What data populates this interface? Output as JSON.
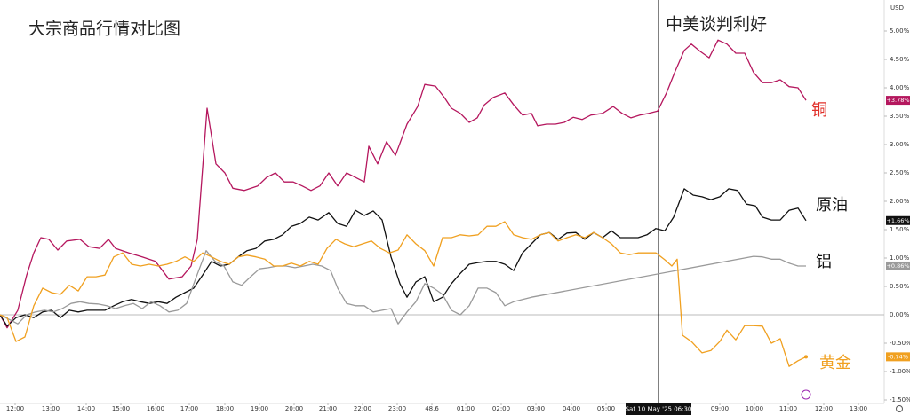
{
  "chart_data": {
    "type": "line",
    "title": "大宗商品行情对比图",
    "annotation": "中美谈判利好",
    "currency": "USD",
    "crosshair": {
      "x": 74.1,
      "label": "Sat 10 May '25   06:30"
    },
    "xlim": [
      0,
      99.5
    ],
    "ylim": [
      -1.5625,
      5.546875
    ],
    "xticks": [
      {
        "value": 1.7,
        "label": "12:00"
      },
      {
        "value": 5.7,
        "label": "13:00"
      },
      {
        "value": 9.7,
        "label": "14:00"
      },
      {
        "value": 13.6,
        "label": "15:00"
      },
      {
        "value": 17.5,
        "label": "16:00"
      },
      {
        "value": 21.3,
        "label": "17:00"
      },
      {
        "value": 25.3,
        "label": "18:00"
      },
      {
        "value": 29.2,
        "label": "19:00"
      },
      {
        "value": 33.1,
        "label": "20:00"
      },
      {
        "value": 36.9,
        "label": "21:00"
      },
      {
        "value": 40.8,
        "label": "22:00"
      },
      {
        "value": 44.7,
        "label": "23:00"
      },
      48.6,
      {
        "value": 52.4,
        "label": "01:00"
      },
      {
        "value": 56.4,
        "label": "02:00"
      },
      {
        "value": 60.3,
        "label": "03:00"
      },
      {
        "value": 64.3,
        "label": "04:00"
      },
      {
        "value": 68.2,
        "label": "05:00"
      },
      {
        "value": 81,
        "label": "09:00"
      },
      {
        "value": 84.9,
        "label": "10:00"
      },
      {
        "value": 88.7,
        "label": "11:00"
      },
      {
        "value": 92.7,
        "label": "12:00"
      },
      {
        "value": 96.6,
        "label": "13:00"
      }
    ],
    "yticks": [
      {
        "value": 5,
        "label": "5.00%"
      },
      {
        "value": 4.5,
        "label": "4.50%"
      },
      {
        "value": 4,
        "label": "4.00%"
      },
      {
        "value": 3.5,
        "label": "3.50%"
      },
      {
        "value": 3,
        "label": "3.00%"
      },
      {
        "value": 2.5,
        "label": "2.50%"
      },
      {
        "value": 2,
        "label": "2.00%"
      },
      {
        "value": 1.5,
        "label": "1.50%"
      },
      {
        "value": 1,
        "label": "1.00%"
      },
      {
        "value": 0.5,
        "label": "0.50%"
      },
      {
        "value": 0,
        "label": "0.00%"
      },
      {
        "value": -0.5,
        "label": "-0.50%"
      },
      {
        "value": -1,
        "label": "-1.00%"
      },
      {
        "value": -1.5,
        "label": "-1.50%"
      }
    ],
    "series": [
      {
        "name": "铜",
        "color": "#b5175e",
        "label_color": "#e0302a",
        "x": [
          0,
          0.8,
          2,
          3,
          3.8,
          4.6,
          5.5,
          6.5,
          7.5,
          9,
          10,
          11.2,
          12.2,
          13,
          14.5,
          16,
          17.5,
          19,
          20.5,
          21.5,
          22.2,
          23.3,
          24.3,
          25.3,
          26.2,
          27.5,
          29,
          30,
          31,
          32,
          33,
          34,
          35,
          36,
          37,
          38,
          39,
          40,
          41,
          41.5,
          42.5,
          43.5,
          44.5,
          45.8,
          47,
          47.8,
          49,
          50,
          50.8,
          51.8,
          52.8,
          53.7,
          54.5,
          55.5,
          56.8,
          57.8,
          58.8,
          59.8,
          60.5,
          61.5,
          62.5,
          63.5,
          64.5,
          65.5,
          66.5,
          67.8,
          69,
          70,
          71,
          72,
          73,
          74,
          75,
          76,
          77,
          77.8,
          78.8,
          79.8,
          80.8,
          81.8,
          82.8,
          83.8,
          84.8,
          85.8,
          86.8,
          87.8,
          88.8,
          89.8,
          90.7
        ],
        "values": [
          0,
          -0.23,
          0.08,
          0.7,
          1.09,
          1.36,
          1.33,
          1.14,
          1.3,
          1.33,
          1.2,
          1.17,
          1.33,
          1.17,
          1.09,
          1.02,
          0.94,
          0.63,
          0.67,
          0.86,
          1.33,
          3.64,
          2.66,
          2.5,
          2.23,
          2.19,
          2.27,
          2.42,
          2.5,
          2.34,
          2.34,
          2.27,
          2.19,
          2.27,
          2.5,
          2.27,
          2.5,
          2.42,
          2.34,
          2.97,
          2.66,
          3.05,
          2.81,
          3.36,
          3.67,
          4.06,
          4.03,
          3.83,
          3.64,
          3.55,
          3.39,
          3.47,
          3.7,
          3.83,
          3.91,
          3.7,
          3.52,
          3.55,
          3.33,
          3.36,
          3.36,
          3.39,
          3.48,
          3.44,
          3.52,
          3.55,
          3.67,
          3.55,
          3.47,
          3.52,
          3.55,
          3.59,
          3.91,
          4.3,
          4.66,
          4.77,
          4.64,
          4.53,
          4.84,
          4.77,
          4.61,
          4.61,
          4.27,
          4.09,
          4.09,
          4.14,
          4.02,
          4,
          3.78
        ],
        "value_labels": [
          null,
          null,
          null,
          null,
          null,
          null,
          null,
          null,
          null,
          null,
          null,
          null,
          null,
          null,
          null,
          null,
          null,
          null,
          null,
          null,
          null,
          null,
          null,
          null,
          null,
          null,
          null,
          null,
          null,
          null,
          null,
          null,
          null,
          null,
          null,
          null,
          null,
          null,
          null,
          null,
          null,
          null,
          null,
          null,
          null,
          null,
          null,
          null,
          null,
          null,
          null,
          null,
          null,
          null,
          null,
          null,
          null,
          null,
          null,
          null,
          null,
          null,
          null,
          null,
          null,
          null,
          null,
          null,
          null,
          null,
          null,
          null,
          null,
          null,
          null,
          null,
          null,
          null,
          null,
          null,
          null,
          null,
          null,
          null,
          null,
          null,
          null,
          null,
          "+3.78%"
        ]
      },
      {
        "name": "原油",
        "color": "#111111",
        "label_color": "#111111",
        "x": [
          0,
          0.8,
          1.8,
          2.8,
          3.8,
          4.8,
          5.8,
          6.8,
          7.8,
          8.8,
          9.8,
          10.8,
          11.8,
          12.8,
          13.8,
          14.8,
          15.8,
          16.8,
          17.8,
          18.8,
          19.8,
          20.8,
          21.8,
          22.8,
          23.8,
          24.8,
          25.8,
          26.8,
          27.8,
          28.8,
          29.8,
          30.8,
          31.8,
          32.8,
          33.8,
          34.8,
          35.8,
          37,
          38,
          39,
          40,
          41,
          42,
          43,
          44,
          45,
          45.8,
          46.8,
          47.8,
          48.8,
          49.8,
          50.8,
          51.8,
          52.8,
          53.8,
          54.8,
          55.8,
          56.8,
          57.8,
          58.8,
          59.8,
          60.8,
          61.8,
          62.8,
          63.8,
          64.8,
          65.8,
          66.8,
          67.8,
          68.8,
          69.8,
          70.8,
          71.8,
          72.8,
          73.8,
          74.8,
          75.8,
          77,
          78,
          79,
          80,
          81,
          82,
          83,
          84,
          85,
          85.8,
          86.8,
          87.8,
          88.8,
          89.8,
          90.7
        ],
        "values": [
          0,
          -0.2,
          -0.05,
          0,
          -0.05,
          0.05,
          0.08,
          -0.05,
          0.08,
          0.05,
          0.08,
          0.08,
          0.08,
          0.16,
          0.23,
          0.27,
          0.23,
          0.2,
          0.23,
          0.2,
          0.31,
          0.39,
          0.47,
          0.7,
          0.94,
          0.86,
          0.89,
          1.02,
          1.13,
          1.17,
          1.3,
          1.33,
          1.41,
          1.56,
          1.61,
          1.72,
          1.67,
          1.8,
          1.61,
          1.56,
          1.84,
          1.75,
          1.83,
          1.67,
          1.02,
          0.55,
          0.31,
          0.58,
          0.67,
          0.23,
          0.31,
          0.55,
          0.73,
          0.89,
          0.92,
          0.94,
          0.94,
          0.89,
          0.78,
          1.09,
          1.25,
          1.41,
          1.45,
          1.33,
          1.44,
          1.45,
          1.33,
          1.45,
          1.36,
          1.48,
          1.36,
          1.36,
          1.36,
          1.41,
          1.52,
          1.48,
          1.72,
          2.22,
          2.11,
          2.08,
          2.03,
          2.08,
          2.22,
          2.19,
          1.95,
          1.92,
          1.72,
          1.67,
          1.67,
          1.84,
          1.88,
          1.66
        ],
        "value_labels": [
          null,
          null,
          null,
          null,
          null,
          null,
          null,
          null,
          null,
          null,
          null,
          null,
          null,
          null,
          null,
          null,
          null,
          null,
          null,
          null,
          null,
          null,
          null,
          null,
          null,
          null,
          null,
          null,
          null,
          null,
          null,
          null,
          null,
          null,
          null,
          null,
          null,
          null,
          null,
          null,
          null,
          null,
          null,
          null,
          null,
          null,
          null,
          null,
          null,
          null,
          null,
          null,
          null,
          null,
          null,
          null,
          null,
          null,
          null,
          null,
          null,
          null,
          null,
          null,
          null,
          null,
          null,
          null,
          null,
          null,
          null,
          null,
          null,
          null,
          null,
          null,
          null,
          null,
          null,
          null,
          null,
          null,
          null,
          null,
          null,
          null,
          null,
          null,
          null,
          null,
          null,
          "+1.66%"
        ]
      },
      {
        "name": "铝",
        "color": "#9a9a9a",
        "label_color": "#111111",
        "x": [
          0,
          1,
          2,
          3,
          4,
          5,
          6,
          7,
          8,
          9,
          10,
          11,
          12,
          13,
          14,
          15,
          16,
          17,
          18,
          19,
          20,
          21,
          22,
          23.2,
          24.2,
          25.2,
          26.2,
          27.2,
          28.2,
          29.2,
          30.2,
          31.2,
          32.2,
          33.2,
          34.2,
          35.2,
          36.2,
          37.2,
          38,
          39,
          40,
          41,
          42,
          43,
          44,
          44.8,
          45.8,
          46.8,
          47.8,
          48.8,
          49.8,
          50.8,
          51.8,
          52.8,
          53.8,
          54.8,
          55.8,
          56.8,
          57.8,
          58.8,
          59.8,
          84.8,
          85.8,
          86.8,
          87.8,
          88.8,
          89.8,
          90.7
        ],
        "values": [
          0,
          -0.08,
          -0.16,
          0,
          0.05,
          0.08,
          0.05,
          0.11,
          0.2,
          0.23,
          0.2,
          0.19,
          0.16,
          0.11,
          0.16,
          0.2,
          0.11,
          0.23,
          0.16,
          0.05,
          0.08,
          0.2,
          0.63,
          1.13,
          0.94,
          0.86,
          0.58,
          0.52,
          0.67,
          0.81,
          0.83,
          0.86,
          0.86,
          0.83,
          0.86,
          0.89,
          0.86,
          0.78,
          0.47,
          0.2,
          0.16,
          0.16,
          0.05,
          0.08,
          0.11,
          -0.16,
          0.05,
          0.23,
          0.55,
          0.47,
          0.36,
          0.08,
          0,
          0.16,
          0.47,
          0.47,
          0.39,
          0.16,
          0.23,
          0.27,
          0.31,
          1.03,
          1.02,
          0.98,
          0.98,
          0.91,
          0.86,
          0.86
        ],
        "value_labels": [
          null,
          null,
          null,
          null,
          null,
          null,
          null,
          null,
          null,
          null,
          null,
          null,
          null,
          null,
          null,
          null,
          null,
          null,
          null,
          null,
          null,
          null,
          null,
          null,
          null,
          null,
          null,
          null,
          null,
          null,
          null,
          null,
          null,
          null,
          null,
          null,
          null,
          null,
          null,
          null,
          null,
          null,
          null,
          null,
          null,
          null,
          null,
          null,
          null,
          null,
          null,
          null,
          null,
          null,
          null,
          null,
          null,
          null,
          null,
          null,
          null,
          null,
          null,
          null,
          null,
          null,
          null,
          "+0.86%"
        ]
      },
      {
        "name": "黄金",
        "color": "#f0a020",
        "label_color": "#f0a020",
        "x": [
          0,
          0.8,
          1.8,
          2.8,
          3.8,
          4.8,
          5.8,
          6.8,
          7.8,
          8.8,
          9.8,
          10.8,
          11.8,
          12.8,
          13.8,
          14.8,
          15.8,
          16.8,
          17.8,
          18.8,
          19.8,
          20.8,
          21.8,
          22.8,
          23.8,
          24.8,
          25.8,
          26.8,
          27.8,
          28.8,
          29.8,
          30.8,
          31.8,
          32.8,
          33.8,
          34.8,
          35.8,
          36.8,
          37.8,
          38.8,
          39.8,
          40.8,
          41.8,
          42.8,
          43.8,
          44.8,
          45.8,
          46.8,
          47.8,
          48.8,
          49.8,
          50.8,
          51.8,
          52.8,
          53.8,
          54.8,
          55.8,
          56.8,
          57.8,
          58.8,
          59.8,
          60.8,
          61.8,
          62.8,
          63.8,
          64.8,
          65.8,
          66.8,
          67.8,
          68.8,
          69.8,
          70.8,
          71.8,
          72.8,
          73.8,
          74.8,
          75.6,
          76.2,
          76.8,
          77.8,
          79,
          80,
          81,
          81.8,
          82.8,
          83.8,
          84.8,
          85.8,
          86.8,
          87.8,
          88.8,
          89.8,
          90.7
        ],
        "values": [
          0,
          -0.05,
          -0.47,
          -0.39,
          0.16,
          0.47,
          0.39,
          0.36,
          0.52,
          0.42,
          0.67,
          0.67,
          0.7,
          1.02,
          1.09,
          0.89,
          0.86,
          0.89,
          0.86,
          0.89,
          0.94,
          1.02,
          0.94,
          1.09,
          1.02,
          0.94,
          0.89,
          1.02,
          1.05,
          1.02,
          0.98,
          0.86,
          0.86,
          0.91,
          0.86,
          0.94,
          0.89,
          1.17,
          1.33,
          1.25,
          1.2,
          1.25,
          1.3,
          1.17,
          1.09,
          1.14,
          1.41,
          1.25,
          1.13,
          0.86,
          1.36,
          1.36,
          1.41,
          1.39,
          1.41,
          1.56,
          1.56,
          1.64,
          1.41,
          1.36,
          1.33,
          1.41,
          1.45,
          1.3,
          1.36,
          1.41,
          1.36,
          1.45,
          1.36,
          1.25,
          1.09,
          1.06,
          1.09,
          1.09,
          1.09,
          0.97,
          0.86,
          0.98,
          -0.36,
          -0.47,
          -0.67,
          -0.63,
          -0.47,
          -0.27,
          -0.44,
          -0.19,
          -0.19,
          -0.2,
          -0.5,
          -0.42,
          -0.91,
          -0.81,
          -0.74
        ],
        "value_labels": [
          null,
          null,
          null,
          null,
          null,
          null,
          null,
          null,
          null,
          null,
          null,
          null,
          null,
          null,
          null,
          null,
          null,
          null,
          null,
          null,
          null,
          null,
          null,
          null,
          null,
          null,
          null,
          null,
          null,
          null,
          null,
          null,
          null,
          null,
          null,
          null,
          null,
          null,
          null,
          null,
          null,
          null,
          null,
          null,
          null,
          null,
          null,
          null,
          null,
          null,
          null,
          null,
          null,
          null,
          null,
          null,
          null,
          null,
          null,
          null,
          null,
          null,
          null,
          null,
          null,
          null,
          null,
          null,
          null,
          null,
          null,
          null,
          null,
          null,
          null,
          null,
          null,
          null,
          null,
          null,
          null,
          null,
          null,
          null,
          null,
          null,
          null,
          null,
          null,
          null,
          null,
          null,
          "-0.74%"
        ]
      }
    ]
  }
}
